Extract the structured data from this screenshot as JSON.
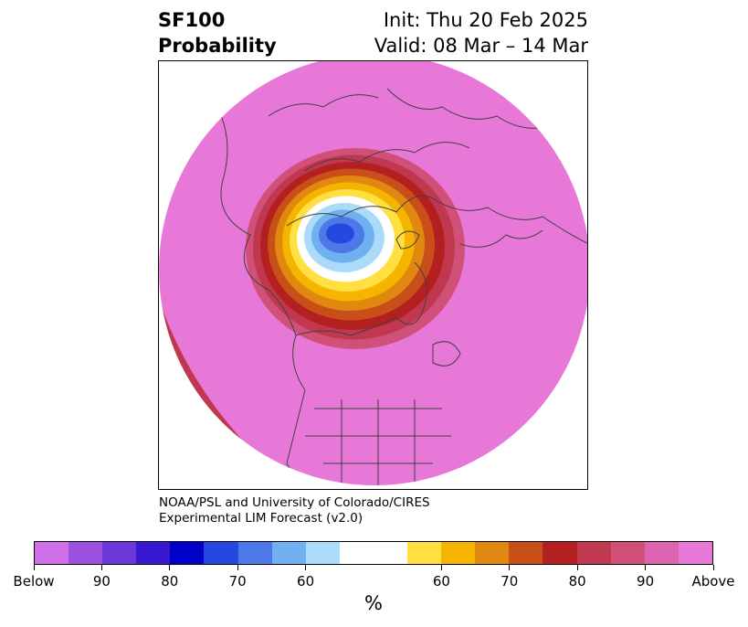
{
  "header": {
    "title_line1": "SF100",
    "title_line2": "Probability",
    "init_text": "Init: Thu 20 Feb 2025",
    "valid_text": "Valid: 08 Mar – 14 Mar"
  },
  "credits": {
    "line1": "NOAA/PSL and University of Colorado/CIRES",
    "line2": "Experimental LIM Forecast (v2.0)"
  },
  "colorbar": {
    "unit_label": "%",
    "tick_labels": [
      "Below",
      "90",
      "80",
      "70",
      "60",
      "60",
      "70",
      "80",
      "90",
      "Above"
    ],
    "colors": [
      "#d070e8",
      "#9b50e0",
      "#6b38d8",
      "#3818d0",
      "#0000c8",
      "#2448e0",
      "#4c78e8",
      "#70b0f0",
      "#aadcfa",
      "#ffffff",
      "#ffffff",
      "#ffe040",
      "#f4b400",
      "#e08810",
      "#c85018",
      "#b42020",
      "#c03850",
      "#d05078",
      "#dc64b0",
      "#e878d8"
    ]
  },
  "map": {
    "background_color": "#e878d8",
    "anomaly_palette": [
      "#d05078",
      "#c03850",
      "#b42020",
      "#c85018",
      "#e08810",
      "#f4b400",
      "#ffe040",
      "#ffffff",
      "#aadcfa",
      "#70b0f0",
      "#4c78e8",
      "#2448e0"
    ],
    "coastline_color": "#404040"
  }
}
